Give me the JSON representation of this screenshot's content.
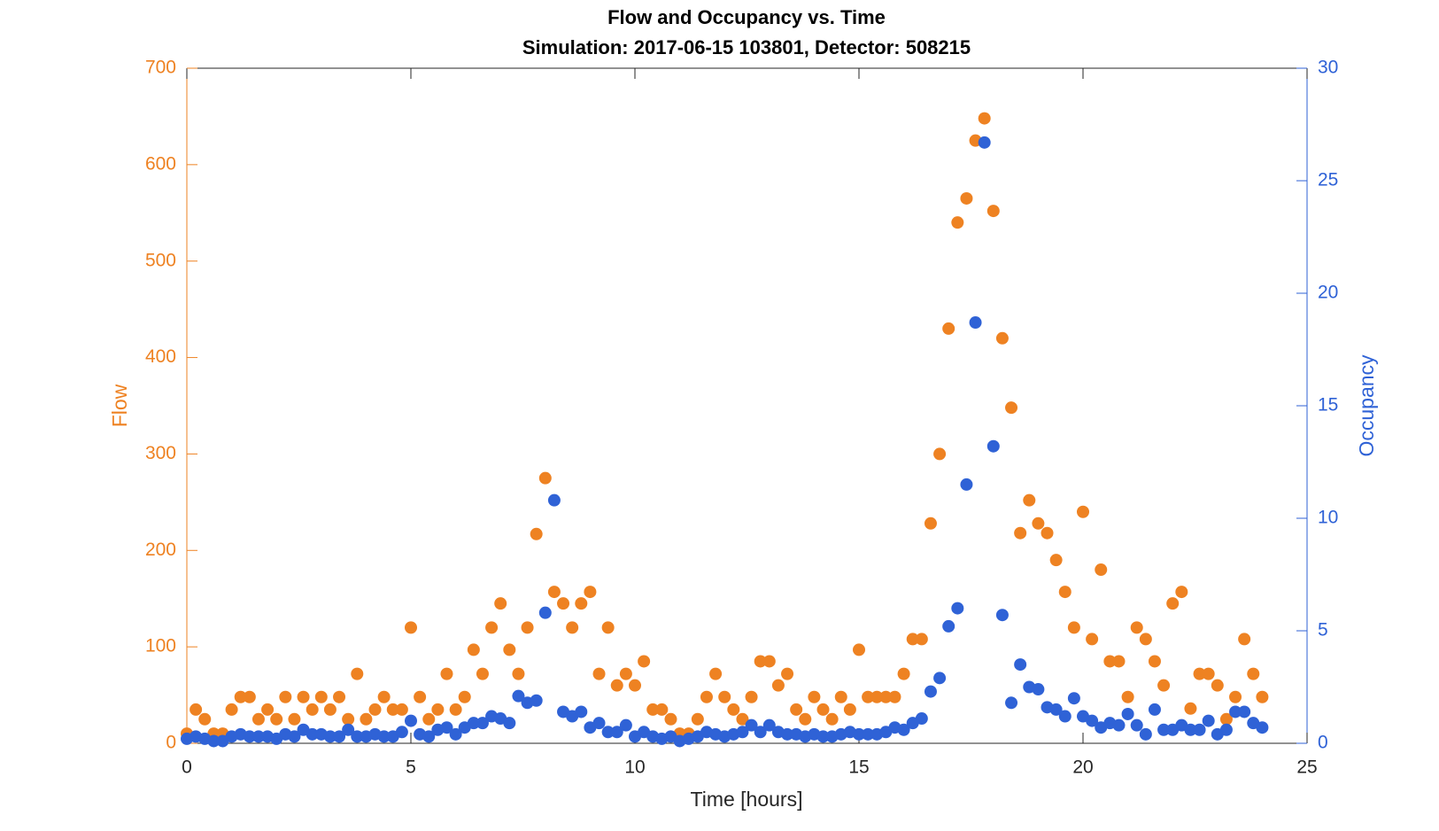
{
  "chart_data": {
    "type": "scatter",
    "title": "Flow and Occupancy vs. Time",
    "subtitle": "Simulation:  2017-06-15 103801,  Detector:  508215",
    "xlabel": "Time [hours]",
    "ylabel": "Flow",
    "y2label": "Occupancy",
    "x": [
      0,
      0.2,
      0.4,
      0.6,
      0.8,
      1,
      1.2,
      1.4,
      1.6,
      1.8,
      2,
      2.2,
      2.4,
      2.6,
      2.8,
      3,
      3.2,
      3.4,
      3.6,
      3.8,
      4,
      4.2,
      4.4,
      4.6,
      4.8,
      5,
      5.2,
      5.4,
      5.6,
      5.8,
      6,
      6.2,
      6.4,
      6.6,
      6.8,
      7,
      7.2,
      7.4,
      7.6,
      7.8,
      8,
      8.2,
      8.4,
      8.6,
      8.8,
      9,
      9.2,
      9.4,
      9.6,
      9.8,
      10,
      10.2,
      10.4,
      10.6,
      10.8,
      11,
      11.2,
      11.4,
      11.6,
      11.8,
      12,
      12.2,
      12.4,
      12.6,
      12.8,
      13,
      13.2,
      13.4,
      13.6,
      13.8,
      14,
      14.2,
      14.4,
      14.6,
      14.8,
      15,
      15.2,
      15.4,
      15.6,
      15.8,
      16,
      16.2,
      16.4,
      16.6,
      16.8,
      17,
      17.2,
      17.4,
      17.6,
      17.8,
      18,
      18.2,
      18.4,
      18.6,
      18.8,
      19,
      19.2,
      19.4,
      19.6,
      19.8,
      20,
      20.2,
      20.4,
      20.6,
      20.8,
      21,
      21.2,
      21.4,
      21.6,
      21.8,
      22,
      22.2,
      22.4,
      22.6,
      22.8,
      23,
      23.2,
      23.4,
      23.6,
      23.8,
      24
    ],
    "series": [
      {
        "name": "Flow",
        "color": "#EE8222",
        "axis": "y",
        "values": [
          10,
          35,
          25,
          10,
          10,
          35,
          48,
          48,
          25,
          35,
          25,
          48,
          25,
          48,
          35,
          48,
          35,
          48,
          25,
          72,
          25,
          35,
          48,
          35,
          35,
          120,
          48,
          25,
          35,
          72,
          35,
          48,
          97,
          72,
          120,
          145,
          97,
          72,
          120,
          217,
          275,
          157,
          145,
          120,
          145,
          157,
          72,
          120,
          60,
          72,
          60,
          85,
          35,
          35,
          25,
          10,
          10,
          25,
          48,
          72,
          48,
          35,
          25,
          48,
          85,
          85,
          60,
          72,
          35,
          25,
          48,
          35,
          25,
          48,
          35,
          97,
          48,
          48,
          48,
          48,
          72,
          108,
          108,
          228,
          300,
          430,
          540,
          565,
          625,
          648,
          552,
          420,
          348,
          218,
          252,
          228,
          218,
          190,
          157,
          120,
          240,
          108,
          180,
          85,
          85,
          48,
          120,
          108,
          85,
          60,
          145,
          157,
          36,
          72,
          72,
          60,
          25,
          48,
          108,
          72,
          48
        ]
      },
      {
        "name": "Occupancy",
        "color": "#2F62D6",
        "axis": "y2",
        "values": [
          0.2,
          0.3,
          0.2,
          0.1,
          0.1,
          0.3,
          0.4,
          0.3,
          0.3,
          0.3,
          0.2,
          0.4,
          0.3,
          0.6,
          0.4,
          0.4,
          0.3,
          0.3,
          0.6,
          0.3,
          0.3,
          0.4,
          0.3,
          0.3,
          0.5,
          1.0,
          0.4,
          0.3,
          0.6,
          0.7,
          0.4,
          0.7,
          0.9,
          0.9,
          1.2,
          1.1,
          0.9,
          2.1,
          1.8,
          1.9,
          5.8,
          10.8,
          1.4,
          1.2,
          1.4,
          0.7,
          0.9,
          0.5,
          0.5,
          0.8,
          0.3,
          0.5,
          0.3,
          0.2,
          0.3,
          0.1,
          0.2,
          0.3,
          0.5,
          0.4,
          0.3,
          0.4,
          0.5,
          0.8,
          0.5,
          0.8,
          0.5,
          0.4,
          0.4,
          0.3,
          0.4,
          0.3,
          0.3,
          0.4,
          0.5,
          0.4,
          0.4,
          0.4,
          0.5,
          0.7,
          0.6,
          0.9,
          1.1,
          2.3,
          2.9,
          5.2,
          6.0,
          11.5,
          18.7,
          26.7,
          13.2,
          5.7,
          1.8,
          3.5,
          2.5,
          2.4,
          1.6,
          1.5,
          1.2,
          2.0,
          1.2,
          1.0,
          0.7,
          0.9,
          0.8,
          1.3,
          0.8,
          0.4,
          1.5,
          0.6,
          0.6,
          0.8,
          0.6,
          0.6,
          1.0,
          0.4,
          0.6,
          1.4,
          1.4,
          0.9,
          0.7
        ]
      }
    ],
    "xlim": [
      0,
      25
    ],
    "xticks": [
      0,
      5,
      10,
      15,
      20,
      25
    ],
    "ylim": [
      0,
      700
    ],
    "yticks": [
      0,
      100,
      200,
      300,
      400,
      500,
      600,
      700
    ],
    "y2lim": [
      0,
      30
    ],
    "y2ticks": [
      0,
      5,
      10,
      15,
      20,
      25,
      30
    ],
    "grid": false
  }
}
